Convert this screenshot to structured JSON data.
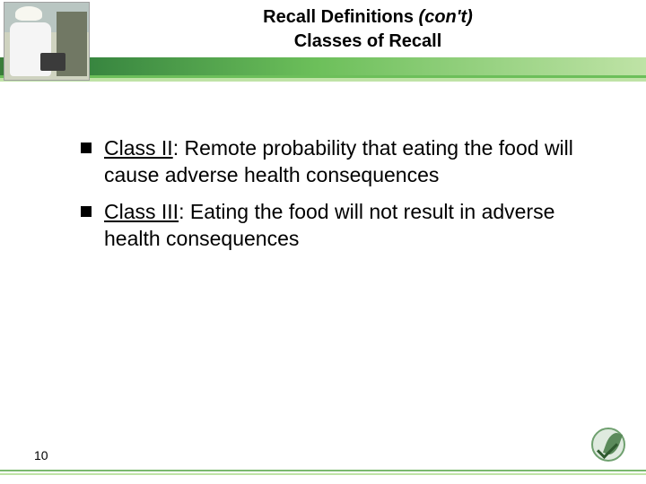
{
  "colors": {
    "accent_dark": "#2d7a3a",
    "accent_mid": "#6cbf5a",
    "accent_light": "#bfe3a6",
    "footer_rule": "#7ab86e",
    "header_left": "#3a7d3a"
  },
  "header": {
    "title_line1_prefix": "Recall Definitions ",
    "title_line1_italic": "(con't)",
    "title_line2": "Classes of Recall"
  },
  "bullets": [
    {
      "label": "Class II",
      "sep": ": ",
      "text": "Remote probability that eating the food will cause adverse health consequences"
    },
    {
      "label": "Class III",
      "sep": ": ",
      "text": "Eating the food will not result in adverse health consequences"
    }
  ],
  "footer": {
    "page_number": "10"
  }
}
